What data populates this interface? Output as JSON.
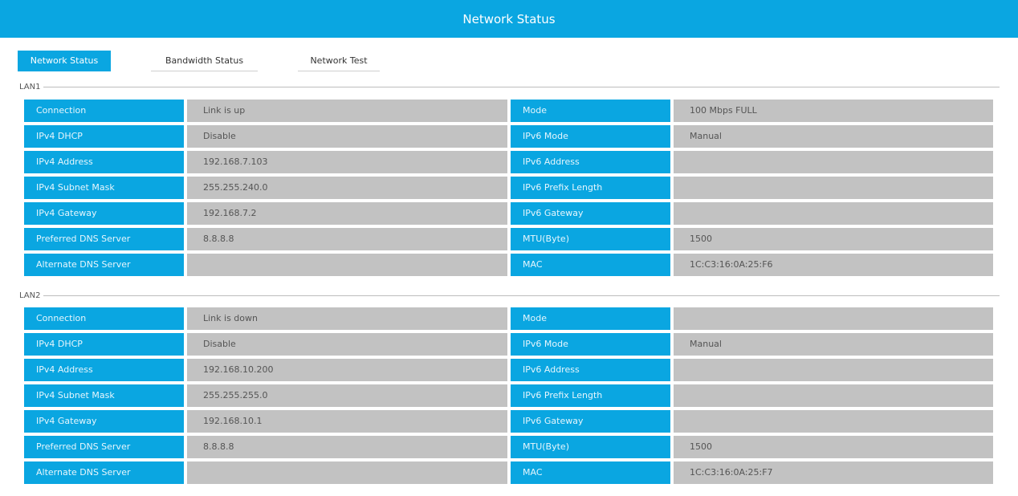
{
  "header": {
    "title": "Network Status"
  },
  "tabs": [
    {
      "label": "Network Status",
      "active": true
    },
    {
      "label": "Bandwidth Status",
      "active": false
    },
    {
      "label": "Network Test",
      "active": false
    }
  ],
  "sections": [
    {
      "title": "LAN1",
      "rows": [
        {
          "l1": "Connection",
          "v1": "Link is up",
          "l2": "Mode",
          "v2": "100 Mbps FULL"
        },
        {
          "l1": "IPv4 DHCP",
          "v1": "Disable",
          "l2": "IPv6 Mode",
          "v2": "Manual"
        },
        {
          "l1": "IPv4 Address",
          "v1": "192.168.7.103",
          "l2": "IPv6 Address",
          "v2": ""
        },
        {
          "l1": "IPv4 Subnet Mask",
          "v1": "255.255.240.0",
          "l2": "IPv6 Prefix Length",
          "v2": ""
        },
        {
          "l1": "IPv4 Gateway",
          "v1": "192.168.7.2",
          "l2": "IPv6 Gateway",
          "v2": ""
        },
        {
          "l1": "Preferred DNS Server",
          "v1": "8.8.8.8",
          "l2": "MTU(Byte)",
          "v2": "1500"
        },
        {
          "l1": "Alternate DNS Server",
          "v1": "",
          "l2": "MAC",
          "v2": "1C:C3:16:0A:25:F6"
        }
      ]
    },
    {
      "title": "LAN2",
      "rows": [
        {
          "l1": "Connection",
          "v1": "Link is down",
          "l2": "Mode",
          "v2": ""
        },
        {
          "l1": "IPv4 DHCP",
          "v1": "Disable",
          "l2": "IPv6 Mode",
          "v2": "Manual"
        },
        {
          "l1": "IPv4 Address",
          "v1": "192.168.10.200",
          "l2": "IPv6 Address",
          "v2": ""
        },
        {
          "l1": "IPv4 Subnet Mask",
          "v1": "255.255.255.0",
          "l2": "IPv6 Prefix Length",
          "v2": ""
        },
        {
          "l1": "IPv4 Gateway",
          "v1": "192.168.10.1",
          "l2": "IPv6 Gateway",
          "v2": ""
        },
        {
          "l1": "Preferred DNS Server",
          "v1": "8.8.8.8",
          "l2": "MTU(Byte)",
          "v2": "1500"
        },
        {
          "l1": "Alternate DNS Server",
          "v1": "",
          "l2": "MAC",
          "v2": "1C:C3:16:0A:25:F7"
        }
      ]
    }
  ],
  "colors": {
    "accent": "#0aa6e1",
    "value_bg": "#c2c2c2"
  }
}
